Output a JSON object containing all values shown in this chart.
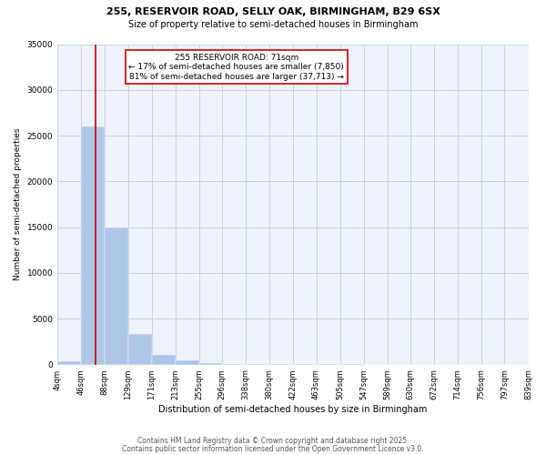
{
  "title1": "255, RESERVOIR ROAD, SELLY OAK, BIRMINGHAM, B29 6SX",
  "title2": "Size of property relative to semi-detached houses in Birmingham",
  "xlabel": "Distribution of semi-detached houses by size in Birmingham",
  "ylabel": "Number of semi-detached properties",
  "property_size": 71,
  "property_label": "255 RESERVOIR ROAD: 71sqm",
  "pct_smaller": 17,
  "pct_larger": 81,
  "count_smaller": 7850,
  "count_larger": 37713,
  "bin_edges": [
    4,
    46,
    88,
    129,
    171,
    213,
    255,
    296,
    338,
    380,
    422,
    463,
    505,
    547,
    589,
    630,
    672,
    714,
    756,
    797,
    839
  ],
  "bin_counts": [
    400,
    26000,
    15000,
    3300,
    1100,
    500,
    200,
    80,
    50,
    30,
    20,
    15,
    10,
    8,
    5,
    4,
    3,
    2,
    2,
    1
  ],
  "bar_color": "#aec6e8",
  "vline_color": "#cc0000",
  "vline_x": 71,
  "annotation_box_color": "#cc0000",
  "bg_color": "#eef2fa",
  "grid_color": "#c8d0e0",
  "footer1": "Contains HM Land Registry data © Crown copyright and database right 2025.",
  "footer2": "Contains public sector information licensed under the Open Government Licence v3.0.",
  "ylim": [
    0,
    35000
  ],
  "yticks": [
    0,
    5000,
    10000,
    15000,
    20000,
    25000,
    30000,
    35000
  ]
}
